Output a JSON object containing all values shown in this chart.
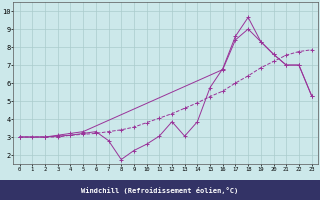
{
  "bg_color": "#cce8ea",
  "grid_color": "#aacccc",
  "line_color": "#993399",
  "axis_bar_color": "#333366",
  "xlim": [
    -0.5,
    23.5
  ],
  "ylim": [
    1.5,
    10.5
  ],
  "yticks": [
    2,
    3,
    4,
    5,
    6,
    7,
    8,
    9,
    10
  ],
  "xticks": [
    0,
    1,
    2,
    3,
    4,
    5,
    6,
    7,
    8,
    9,
    10,
    11,
    12,
    13,
    14,
    15,
    16,
    17,
    18,
    19,
    20,
    21,
    22,
    23
  ],
  "xlabel": "Windchill (Refroidissement éolien,°C)",
  "line1_x": [
    0,
    1,
    2,
    3,
    4,
    5,
    6,
    7,
    8,
    9,
    10,
    11,
    12,
    13,
    14,
    15,
    16,
    17,
    18,
    19,
    20,
    21,
    22,
    23
  ],
  "line1_y": [
    3.0,
    3.0,
    3.0,
    3.0,
    3.1,
    3.15,
    3.2,
    3.3,
    3.4,
    3.55,
    3.8,
    4.05,
    4.3,
    4.6,
    4.9,
    5.25,
    5.55,
    6.0,
    6.4,
    6.85,
    7.2,
    7.55,
    7.75,
    7.85
  ],
  "line2_x": [
    0,
    2,
    3,
    4,
    5,
    6,
    7,
    8,
    9,
    10,
    11,
    12,
    13,
    14,
    15,
    16,
    17,
    18,
    19,
    20,
    21,
    22,
    23
  ],
  "line2_y": [
    3.0,
    3.0,
    3.05,
    3.1,
    3.2,
    3.3,
    2.8,
    1.75,
    2.25,
    2.6,
    3.05,
    3.85,
    3.05,
    3.85,
    5.75,
    6.8,
    8.6,
    9.65,
    8.3,
    7.6,
    7.0,
    7.0,
    5.3
  ],
  "line3_x": [
    0,
    2,
    3,
    4,
    5,
    16,
    17,
    18,
    19,
    20,
    21,
    22,
    23
  ],
  "line3_y": [
    3.0,
    3.0,
    3.1,
    3.2,
    3.3,
    6.75,
    8.4,
    9.0,
    8.3,
    7.6,
    7.0,
    7.0,
    5.3
  ]
}
